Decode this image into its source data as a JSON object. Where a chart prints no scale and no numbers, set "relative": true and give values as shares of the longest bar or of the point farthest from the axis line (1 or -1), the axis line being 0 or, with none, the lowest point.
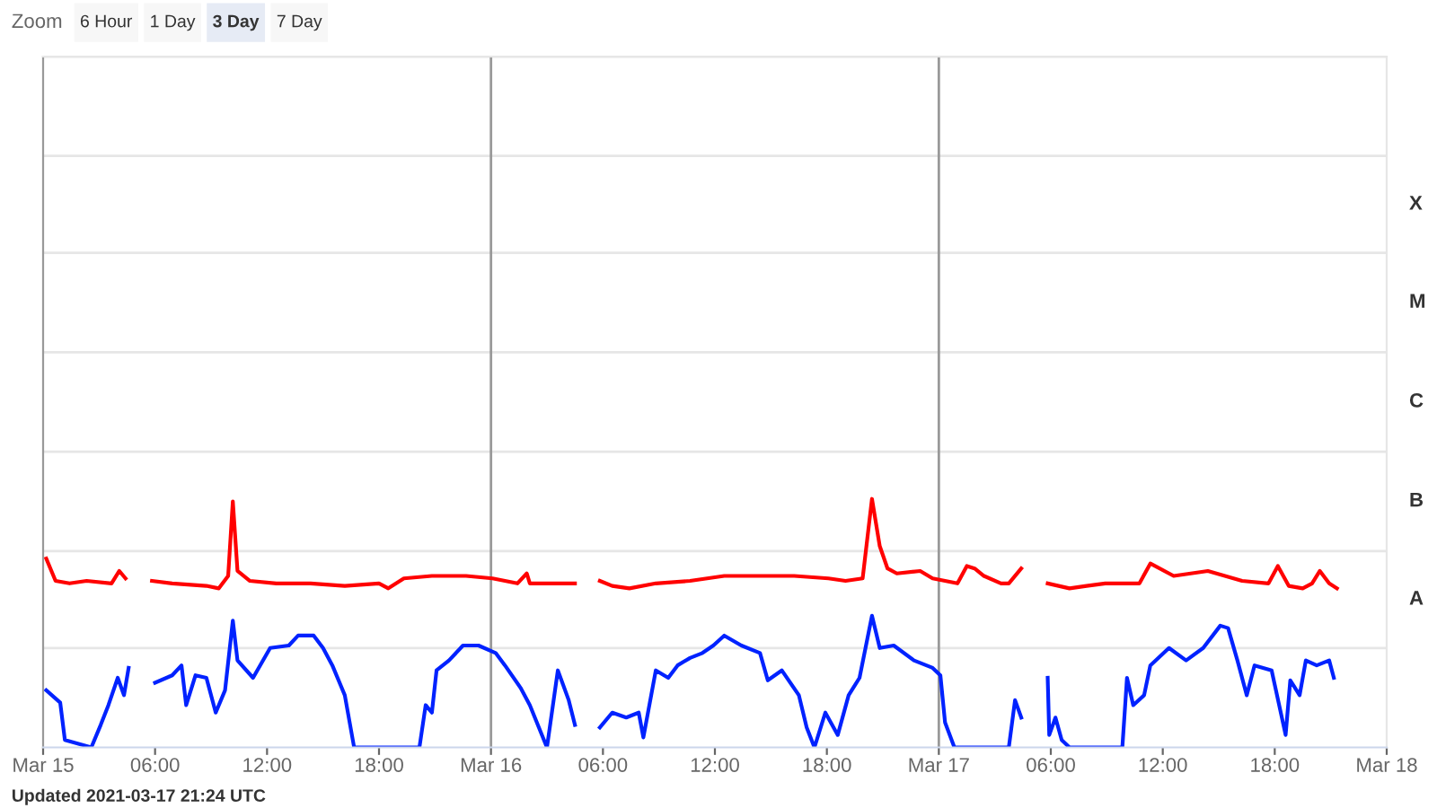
{
  "chart_data": {
    "type": "line",
    "relative": true,
    "xlim": [
      "2021-03-15T00:00",
      "2021-03-18T00:00"
    ],
    "xticks": [
      {
        "value": "2021-03-15T00:00",
        "label": "Mar 15"
      },
      {
        "value": "2021-03-15T06:00",
        "label": "06:00"
      },
      {
        "value": "2021-03-15T12:00",
        "label": "12:00"
      },
      {
        "value": "2021-03-15T18:00",
        "label": "18:00"
      },
      {
        "value": "2021-03-16T00:00",
        "label": "Mar 16"
      },
      {
        "value": "2021-03-16T06:00",
        "label": "06:00"
      },
      {
        "value": "2021-03-16T12:00",
        "label": "12:00"
      },
      {
        "value": "2021-03-16T18:00",
        "label": "18:00"
      },
      {
        "value": "2021-03-17T00:00",
        "label": "Mar 17"
      },
      {
        "value": "2021-03-17T06:00",
        "label": "06:00"
      },
      {
        "value": "2021-03-17T12:00",
        "label": "12:00"
      },
      {
        "value": "2021-03-17T18:00",
        "label": "18:00"
      },
      {
        "value": "2021-03-18T00:00",
        "label": "Mar 18"
      }
    ],
    "tick_labels": "x",
    "marker": "none",
    "line_style": "solid",
    "ref_lines": [
      {
        "axis": "x",
        "value": "2021-03-16T00:00",
        "color": "#999999"
      },
      {
        "axis": "x",
        "value": "2021-03-17T00:00",
        "color": "#999999"
      },
      {
        "axis": "y",
        "value": 0.4,
        "color": "#e6e6e6"
      },
      {
        "axis": "y",
        "value": 0.79,
        "color": "#e6e6e6"
      },
      {
        "axis": "y",
        "value": 1.19,
        "color": "#e6e6e6"
      },
      {
        "axis": "y",
        "value": 1.59,
        "color": "#e6e6e6"
      },
      {
        "axis": "y",
        "value": 1.99,
        "color": "#e6e6e6"
      },
      {
        "axis": "y",
        "value": 2.38,
        "color": "#e6e6e6"
      },
      {
        "axis": "y",
        "value": 2.78,
        "color": "#e6e6e6"
      }
    ],
    "annotations": [
      "Zoom",
      "6 Hour",
      "1 Day",
      "3 Day",
      "7 Day",
      "Updated 2021-03-17 21:24 UTC",
      "A",
      "B",
      "C",
      "M",
      "X"
    ],
    "series": [
      {
        "color": "#ff0000",
        "x": [
          "2021-03-15T00:10",
          "2021-03-15T00:40",
          "2021-03-15T01:25",
          "2021-03-15T02:20",
          "2021-03-15T03:40",
          "2021-03-15T04:05",
          "2021-03-15T04:25",
          "2021-03-15T05:10",
          "2021-03-15T05:50",
          "2021-03-15T06:55",
          "2021-03-15T08:45",
          "2021-03-15T09:25",
          "2021-03-15T09:55",
          "2021-03-15T10:10",
          "2021-03-15T10:25",
          "2021-03-15T11:05",
          "2021-03-15T12:30",
          "2021-03-15T14:20",
          "2021-03-15T16:10",
          "2021-03-15T18:00",
          "2021-03-15T18:30",
          "2021-03-15T18:55",
          "2021-03-15T19:20",
          "2021-03-15T20:50",
          "2021-03-15T22:40",
          "2021-03-16T00:05",
          "2021-03-16T01:25",
          "2021-03-16T01:55",
          "2021-03-16T02:05",
          "2021-03-16T03:15",
          "2021-03-16T04:30",
          "2021-03-16T05:10",
          "2021-03-16T05:50",
          "2021-03-16T06:30",
          "2021-03-16T07:25",
          "2021-03-16T08:50",
          "2021-03-16T10:40",
          "2021-03-16T12:30",
          "2021-03-16T14:25",
          "2021-03-16T16:15",
          "2021-03-16T18:05",
          "2021-03-16T19:00",
          "2021-03-16T19:55",
          "2021-03-16T20:25",
          "2021-03-16T20:50",
          "2021-03-16T21:15",
          "2021-03-16T21:45",
          "2021-03-16T23:00",
          "2021-03-16T23:40",
          "2021-03-17T01:00",
          "2021-03-17T01:30",
          "2021-03-17T01:55",
          "2021-03-17T02:25",
          "2021-03-17T03:20",
          "2021-03-17T03:45",
          "2021-03-17T04:25",
          "2021-03-17T05:10",
          "2021-03-17T05:50",
          "2021-03-17T07:00",
          "2021-03-17T07:55",
          "2021-03-17T08:55",
          "2021-03-17T10:45",
          "2021-03-17T11:20",
          "2021-03-17T12:35",
          "2021-03-17T14:25",
          "2021-03-17T16:15",
          "2021-03-17T17:40",
          "2021-03-17T18:10",
          "2021-03-17T18:45",
          "2021-03-17T19:30",
          "2021-03-17T20:00",
          "2021-03-17T20:25",
          "2021-03-17T20:55",
          "2021-03-17T21:20"
        ],
        "values": [
          0.76,
          0.67,
          0.66,
          0.67,
          0.66,
          0.71,
          0.68,
          null,
          0.67,
          0.66,
          0.65,
          0.64,
          0.69,
          0.99,
          0.71,
          0.67,
          0.66,
          0.66,
          0.65,
          0.66,
          0.64,
          0.66,
          0.68,
          0.69,
          0.69,
          0.68,
          0.66,
          0.7,
          0.66,
          0.66,
          0.66,
          null,
          0.67,
          0.65,
          0.64,
          0.66,
          0.67,
          0.69,
          0.69,
          0.69,
          0.68,
          0.67,
          0.68,
          1.0,
          0.81,
          0.72,
          0.7,
          0.71,
          0.68,
          0.66,
          0.73,
          0.72,
          0.69,
          0.66,
          0.66,
          0.72,
          null,
          0.66,
          0.64,
          0.65,
          0.66,
          0.66,
          0.74,
          0.69,
          0.71,
          0.67,
          0.66,
          0.73,
          0.65,
          0.64,
          0.66,
          0.71,
          0.66,
          0.64
        ]
      },
      {
        "color": "#0022ff",
        "x": [
          "2021-03-15T00:10",
          "2021-03-15T00:55",
          "2021-03-15T01:10",
          "2021-03-15T02:35",
          "2021-03-15T03:05",
          "2021-03-15T03:30",
          "2021-03-15T04:00",
          "2021-03-15T04:20",
          "2021-03-15T04:35",
          "2021-03-15T05:10",
          "2021-03-15T06:00",
          "2021-03-15T06:55",
          "2021-03-15T07:25",
          "2021-03-15T07:40",
          "2021-03-15T08:10",
          "2021-03-15T08:45",
          "2021-03-15T09:15",
          "2021-03-15T09:45",
          "2021-03-15T10:10",
          "2021-03-15T10:25",
          "2021-03-15T11:15",
          "2021-03-15T12:10",
          "2021-03-15T13:10",
          "2021-03-15T13:40",
          "2021-03-15T14:30",
          "2021-03-15T15:00",
          "2021-03-15T15:30",
          "2021-03-15T16:10",
          "2021-03-15T16:40",
          "2021-03-15T20:10",
          "2021-03-15T20:30",
          "2021-03-15T20:50",
          "2021-03-15T21:05",
          "2021-03-15T21:45",
          "2021-03-15T22:30",
          "2021-03-15T23:20",
          "2021-03-16T00:15",
          "2021-03-16T00:45",
          "2021-03-16T01:35",
          "2021-03-16T02:05",
          "2021-03-16T03:00",
          "2021-03-16T03:35",
          "2021-03-16T04:10",
          "2021-03-16T04:30",
          "2021-03-16T05:10",
          "2021-03-16T05:50",
          "2021-03-16T06:30",
          "2021-03-16T07:15",
          "2021-03-16T07:55",
          "2021-03-16T08:10",
          "2021-03-16T08:50",
          "2021-03-16T09:30",
          "2021-03-16T10:00",
          "2021-03-16T10:40",
          "2021-03-16T11:20",
          "2021-03-16T11:55",
          "2021-03-16T12:30",
          "2021-03-16T13:25",
          "2021-03-16T14:25",
          "2021-03-16T14:50",
          "2021-03-16T15:35",
          "2021-03-16T16:30",
          "2021-03-16T16:55",
          "2021-03-16T17:20",
          "2021-03-16T17:55",
          "2021-03-16T18:35",
          "2021-03-16T19:10",
          "2021-03-16T19:45",
          "2021-03-16T20:25",
          "2021-03-16T20:50",
          "2021-03-16T21:35",
          "2021-03-16T22:40",
          "2021-03-16T23:40",
          "2021-03-17T00:05",
          "2021-03-17T00:20",
          "2021-03-17T00:50",
          "2021-03-17T03:45",
          "2021-03-17T04:05",
          "2021-03-17T04:25",
          "2021-03-17T05:10",
          "2021-03-17T05:50",
          "2021-03-17T05:55",
          "2021-03-17T06:15",
          "2021-03-17T06:35",
          "2021-03-17T07:00",
          "2021-03-17T09:50",
          "2021-03-17T10:05",
          "2021-03-17T10:25",
          "2021-03-17T11:00",
          "2021-03-17T11:20",
          "2021-03-17T12:20",
          "2021-03-17T13:15",
          "2021-03-17T14:10",
          "2021-03-17T15:05",
          "2021-03-17T15:30",
          "2021-03-17T16:00",
          "2021-03-17T16:30",
          "2021-03-17T16:55",
          "2021-03-17T17:50",
          "2021-03-17T18:35",
          "2021-03-17T18:50",
          "2021-03-17T19:20",
          "2021-03-17T19:40",
          "2021-03-17T20:15",
          "2021-03-17T20:55",
          "2021-03-17T21:10"
        ],
        "values": [
          0.23,
          0.18,
          0.03,
          0.0,
          0.09,
          0.17,
          0.28,
          0.21,
          0.32,
          null,
          0.26,
          0.29,
          0.33,
          0.17,
          0.29,
          0.28,
          0.14,
          0.23,
          0.51,
          0.35,
          0.28,
          0.4,
          0.41,
          0.45,
          0.45,
          0.4,
          0.33,
          0.21,
          0.0,
          0.0,
          0.17,
          0.14,
          0.31,
          0.35,
          0.41,
          0.41,
          0.38,
          0.33,
          0.24,
          0.17,
          0.0,
          0.31,
          0.19,
          0.09,
          null,
          0.08,
          0.14,
          0.12,
          0.14,
          0.04,
          0.31,
          0.28,
          0.33,
          0.36,
          0.38,
          0.41,
          0.45,
          0.41,
          0.38,
          0.27,
          0.31,
          0.21,
          0.08,
          0.0,
          0.14,
          0.05,
          0.21,
          0.28,
          0.53,
          0.4,
          0.41,
          0.35,
          0.32,
          0.29,
          0.1,
          0.0,
          0.0,
          0.19,
          0.12,
          null,
          0.28,
          0.05,
          0.12,
          0.03,
          0.0,
          0.0,
          0.28,
          0.17,
          0.21,
          0.33,
          0.4,
          0.35,
          0.4,
          0.49,
          0.48,
          0.35,
          0.21,
          0.33,
          0.31,
          0.05,
          0.27,
          0.21,
          0.35,
          0.33,
          0.35,
          0.28
        ]
      }
    ]
  }
}
